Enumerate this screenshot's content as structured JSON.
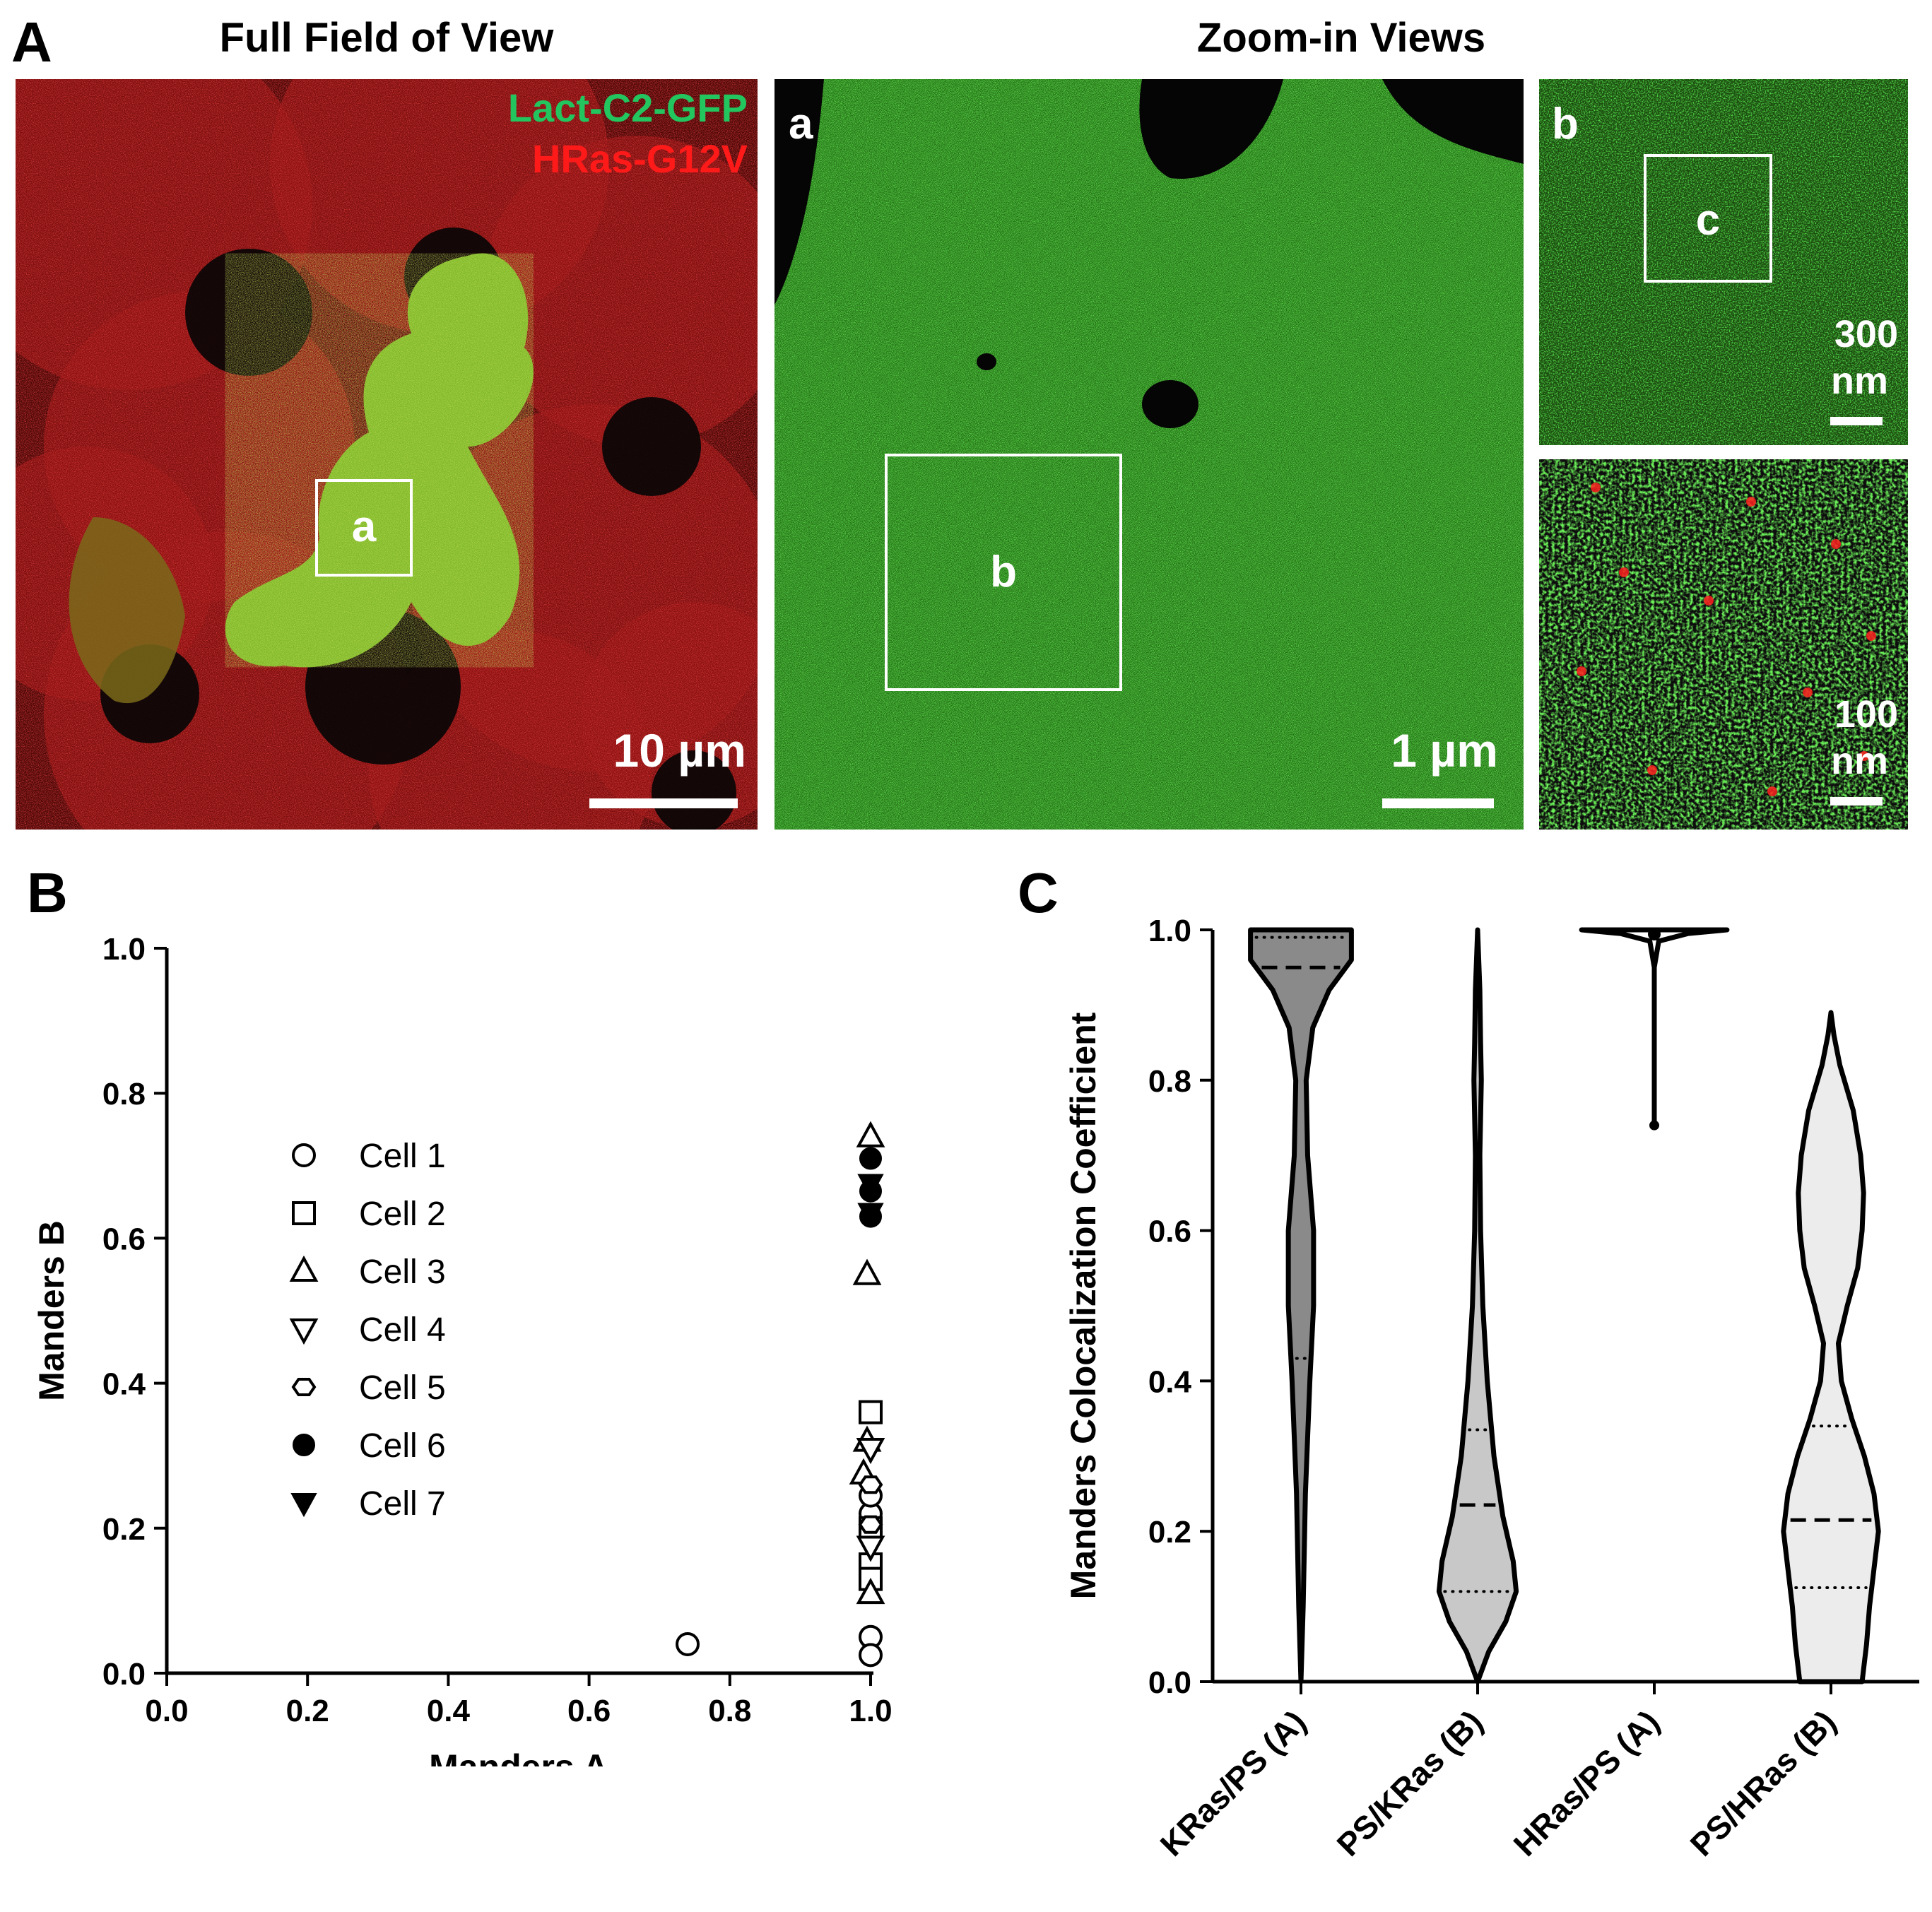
{
  "figure": {
    "panel_a_letter": "A",
    "panel_b_letter": "B",
    "panel_c_letter": "C",
    "heading_full": "Full Field of View",
    "heading_zoom": "Zoom-in Views"
  },
  "images": {
    "full": {
      "channel_green": "Lact-C2-GFP",
      "channel_red": "HRas-G12V",
      "channel_green_color": "#22c55e",
      "channel_red_color": "#ff1a1a",
      "roi_label": "a",
      "scale_label": "10 µm"
    },
    "zoom_a": {
      "corner_label": "a",
      "roi_label": "b",
      "scale_label": "1 µm"
    },
    "zoom_b": {
      "corner_label": "b",
      "roi_label": "c",
      "scale_value": "300",
      "scale_unit": "nm"
    },
    "zoom_c": {
      "scale_value": "100",
      "scale_unit": "nm"
    }
  },
  "chart_data": [
    {
      "type": "scatter",
      "panel": "B",
      "xlabel": "Manders A",
      "ylabel": "Manders B",
      "xlim": [
        0,
        1
      ],
      "ylim": [
        0,
        1
      ],
      "xticks": [
        "0.0",
        "0.2",
        "0.4",
        "0.6",
        "0.8",
        "1.0"
      ],
      "yticks": [
        "0.0",
        "0.2",
        "0.4",
        "0.6",
        "0.8",
        "1.0"
      ],
      "legend_position": "center-left",
      "series": [
        {
          "name": "Cell 1",
          "marker": "circle-open",
          "points": [
            [
              0.74,
              0.04
            ],
            [
              1.0,
              0.05
            ],
            [
              1.0,
              0.025
            ],
            [
              1.0,
              0.22
            ],
            [
              1.0,
              0.245
            ]
          ]
        },
        {
          "name": "Cell 2",
          "marker": "square-open",
          "points": [
            [
              1.0,
              0.36
            ],
            [
              1.0,
              0.2
            ],
            [
              1.0,
              0.15
            ],
            [
              1.0,
              0.13
            ]
          ]
        },
        {
          "name": "Cell 3",
          "marker": "triangle-up-open",
          "points": [
            [
              1.0,
              0.74
            ],
            [
              0.995,
              0.55
            ],
            [
              0.995,
              0.32
            ],
            [
              0.99,
              0.275
            ],
            [
              1.0,
              0.11
            ]
          ]
        },
        {
          "name": "Cell 4",
          "marker": "triangle-down-open",
          "points": [
            [
              1.0,
              0.31
            ],
            [
              1.0,
              0.175
            ]
          ]
        },
        {
          "name": "Cell 5",
          "marker": "hexagon-open",
          "points": [
            [
              1.0,
              0.26
            ],
            [
              1.0,
              0.205
            ]
          ]
        },
        {
          "name": "Cell 6",
          "marker": "circle-filled",
          "points": [
            [
              1.0,
              0.71
            ],
            [
              1.0,
              0.665
            ],
            [
              1.0,
              0.63
            ]
          ]
        },
        {
          "name": "Cell 7",
          "marker": "triangle-down-filled",
          "points": [
            [
              1.0,
              0.675
            ],
            [
              1.0,
              0.635
            ]
          ]
        }
      ]
    },
    {
      "type": "violin",
      "panel": "C",
      "ylabel": "Manders Colocalization Coefficient",
      "ylim": [
        0,
        1
      ],
      "yticks": [
        "0.0",
        "0.2",
        "0.4",
        "0.6",
        "0.8",
        "1.0"
      ],
      "categories": [
        "KRas/PS (A)",
        "PS/KRas (B)",
        "HRas/PS (A)",
        "PS/HRas (B)"
      ],
      "series": [
        {
          "name": "KRas/PS (A)",
          "fill": "#8a8a8a",
          "min": 0.0,
          "max": 1.0,
          "median": 0.95,
          "q1": 0.43,
          "q3": 0.99,
          "profile": [
            [
              0.0,
              0.0
            ],
            [
              0.1,
              0.03
            ],
            [
              0.25,
              0.06
            ],
            [
              0.4,
              0.12
            ],
            [
              0.5,
              0.17
            ],
            [
              0.6,
              0.17
            ],
            [
              0.7,
              0.09
            ],
            [
              0.8,
              0.07
            ],
            [
              0.87,
              0.16
            ],
            [
              0.92,
              0.38
            ],
            [
              0.96,
              0.68
            ],
            [
              1.0,
              0.68
            ]
          ]
        },
        {
          "name": "PS/KRas (B)",
          "fill": "#c8c8c8",
          "min": 0.0,
          "max": 1.0,
          "median": 0.235,
          "q1": 0.12,
          "q3": 0.335,
          "profile": [
            [
              0.0,
              0.0
            ],
            [
              0.04,
              0.15
            ],
            [
              0.08,
              0.38
            ],
            [
              0.12,
              0.52
            ],
            [
              0.16,
              0.48
            ],
            [
              0.22,
              0.34
            ],
            [
              0.3,
              0.22
            ],
            [
              0.4,
              0.13
            ],
            [
              0.5,
              0.07
            ],
            [
              0.6,
              0.04
            ],
            [
              0.7,
              0.03
            ],
            [
              0.8,
              0.05
            ],
            [
              0.85,
              0.04
            ],
            [
              0.92,
              0.03
            ],
            [
              1.0,
              0.0
            ]
          ]
        },
        {
          "name": "HRas/PS (A)",
          "fill": "#ffffff",
          "min": 0.74,
          "max": 1.0,
          "median": 1.0,
          "q1": 1.0,
          "q3": 1.0,
          "profile": [
            [
              0.74,
              0.0
            ],
            [
              0.95,
              0.0
            ],
            [
              0.985,
              0.06
            ],
            [
              0.995,
              0.45
            ],
            [
              1.0,
              0.98
            ]
          ]
        },
        {
          "name": "PS/HRas (B)",
          "fill": "#ececec",
          "min": 0.0,
          "max": 0.89,
          "median": 0.215,
          "q1": 0.125,
          "q3": 0.34,
          "profile": [
            [
              0.0,
              0.42
            ],
            [
              0.05,
              0.48
            ],
            [
              0.1,
              0.52
            ],
            [
              0.15,
              0.58
            ],
            [
              0.2,
              0.64
            ],
            [
              0.25,
              0.58
            ],
            [
              0.3,
              0.45
            ],
            [
              0.35,
              0.28
            ],
            [
              0.4,
              0.14
            ],
            [
              0.45,
              0.1
            ],
            [
              0.5,
              0.22
            ],
            [
              0.55,
              0.36
            ],
            [
              0.6,
              0.42
            ],
            [
              0.65,
              0.44
            ],
            [
              0.7,
              0.4
            ],
            [
              0.76,
              0.3
            ],
            [
              0.82,
              0.12
            ],
            [
              0.86,
              0.04
            ],
            [
              0.89,
              0.0
            ]
          ]
        }
      ]
    }
  ]
}
